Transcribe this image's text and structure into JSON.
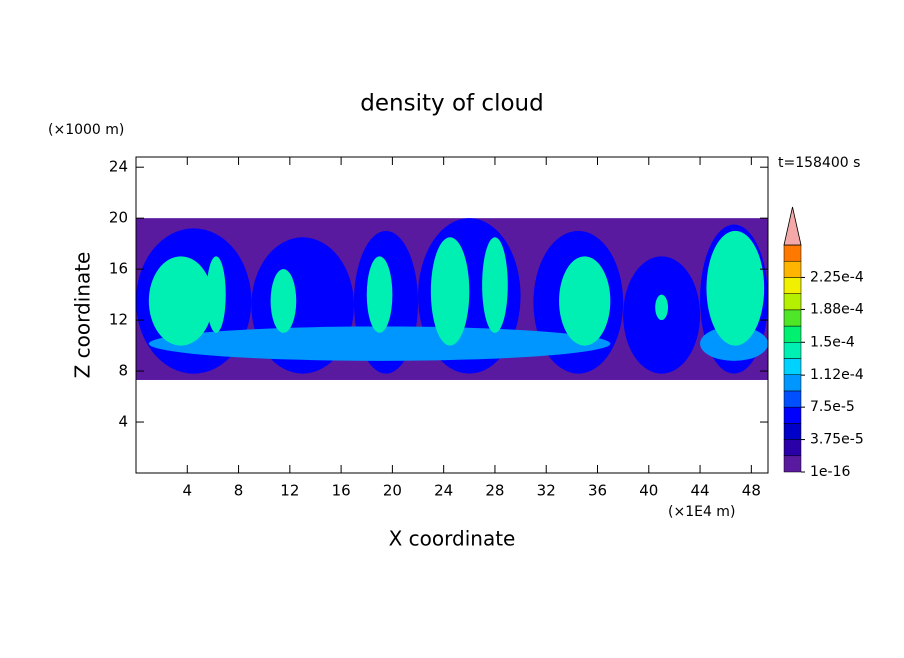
{
  "chart_data": {
    "type": "contour",
    "title": "density of cloud",
    "x_label": "X coordinate",
    "y_label": "Z coordinate",
    "x_unit": "(×1E4 m)",
    "y_unit": "(×1000 m)",
    "time_label": "t=158400 s",
    "xlim": [
      0,
      49.3
    ],
    "ylim": [
      0,
      24.8
    ],
    "xticks": [
      4,
      8,
      12,
      16,
      20,
      24,
      28,
      32,
      36,
      40,
      44,
      48
    ],
    "yticks": [
      4,
      8,
      12,
      16,
      20,
      24
    ],
    "colorbar": {
      "ticks": [
        {
          "value": 1e-16,
          "label": "1e-16"
        },
        {
          "value": 3.75e-05,
          "label": "3.75e-5"
        },
        {
          "value": 7.5e-05,
          "label": "7.5e-5"
        },
        {
          "value": 0.000112,
          "label": "1.12e-4"
        },
        {
          "value": 0.00015,
          "label": "1.5e-4"
        },
        {
          "value": 0.000188,
          "label": "1.88e-4"
        },
        {
          "value": 0.000225,
          "label": "2.25e-4"
        }
      ],
      "colors": [
        "#5a1aa0",
        "#2a00a8",
        "#0000c8",
        "#0000ff",
        "#0050ff",
        "#0096ff",
        "#00d2ff",
        "#00f0b4",
        "#00f070",
        "#50e628",
        "#b4f000",
        "#f0f000",
        "#ffb400",
        "#ff7800"
      ],
      "extend_color": "#f4a8a8"
    },
    "cells": [
      {
        "x0": 0,
        "x1": 49.3,
        "z0": 7.3,
        "z1": 20,
        "value": 1e-16
      },
      {
        "x0": 0,
        "x1": 9,
        "z0": 7.8,
        "z1": 19.2,
        "value": 6e-05
      },
      {
        "x0": 9,
        "x1": 17,
        "z0": 7.8,
        "z1": 18.5,
        "value": 6e-05
      },
      {
        "x0": 17,
        "x1": 22,
        "z0": 7.8,
        "z1": 19,
        "value": 6e-05
      },
      {
        "x0": 22,
        "x1": 30,
        "z0": 7.8,
        "z1": 20,
        "value": 6e-05
      },
      {
        "x0": 31,
        "x1": 38,
        "z0": 7.8,
        "z1": 19,
        "value": 6e-05
      },
      {
        "x0": 38,
        "x1": 44,
        "z0": 7.8,
        "z1": 17,
        "value": 6e-05
      },
      {
        "x0": 44,
        "x1": 49.3,
        "z0": 7.8,
        "z1": 19.5,
        "value": 6e-05
      },
      {
        "x0": 1,
        "x1": 37,
        "z0": 8.8,
        "z1": 11.5,
        "value": 0.0001
      },
      {
        "x0": 44,
        "x1": 49.3,
        "z0": 8.8,
        "z1": 11.5,
        "value": 0.0001
      },
      {
        "x0": 1,
        "x1": 6,
        "z0": 10,
        "z1": 17,
        "value": 0.00014
      },
      {
        "x0": 5.5,
        "x1": 7,
        "z0": 11,
        "z1": 17,
        "value": 0.00014
      },
      {
        "x0": 10.5,
        "x1": 12.5,
        "z0": 11,
        "z1": 16,
        "value": 0.00014
      },
      {
        "x0": 18,
        "x1": 20,
        "z0": 11,
        "z1": 17,
        "value": 0.00014
      },
      {
        "x0": 23,
        "x1": 26,
        "z0": 10,
        "z1": 18.5,
        "value": 0.00014
      },
      {
        "x0": 27,
        "x1": 29,
        "z0": 11,
        "z1": 18.5,
        "value": 0.00014
      },
      {
        "x0": 33,
        "x1": 37,
        "z0": 10,
        "z1": 17,
        "value": 0.00014
      },
      {
        "x0": 40.5,
        "x1": 41.5,
        "z0": 12,
        "z1": 14,
        "value": 0.00014
      },
      {
        "x0": 44.5,
        "x1": 49,
        "z0": 10,
        "z1": 19,
        "value": 0.00014
      }
    ]
  }
}
